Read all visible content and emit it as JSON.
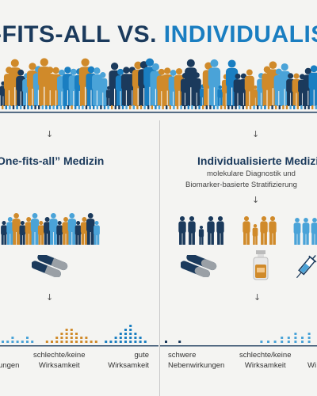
{
  "title": {
    "part1": "-FITS-ALL",
    "vs": "VS.",
    "part2": "INDIVIDUALISI"
  },
  "colors": {
    "navy": "#1b3a5c",
    "blue": "#1a7ec1",
    "light_blue": "#4aa3d8",
    "orange": "#d08a2a",
    "grey_arrow": "#555555",
    "background": "#f4f4f2"
  },
  "left_panel": {
    "heading": "One-fits-all” Medizin",
    "arrow": "↓",
    "labels": {
      "low": "ungen",
      "mid_line1": "schlechte/keine",
      "mid_line2": "Wirksamkeit",
      "high_line1": "gute",
      "high_line2": "Wirksamkeit"
    }
  },
  "right_panel": {
    "heading": "Individualisierte Medizin",
    "sub_line1": "molekulare Diagnostik und",
    "sub_line2": "Biomarker-basierte Stratifizierung",
    "arrow": "↓",
    "labels": {
      "low_line1": "schwere",
      "low_line2": "Nebenwirkungen",
      "mid_line1": "schlechte/keine",
      "mid_line2": "Wirksamkeit",
      "high_line2": "Wi"
    }
  },
  "icons": {
    "crowd": "people-crowd-icon",
    "pill": "capsule-icon",
    "vial": "vial-icon",
    "syringe": "syringe-icon",
    "arrow": "arrow-down-icon"
  }
}
